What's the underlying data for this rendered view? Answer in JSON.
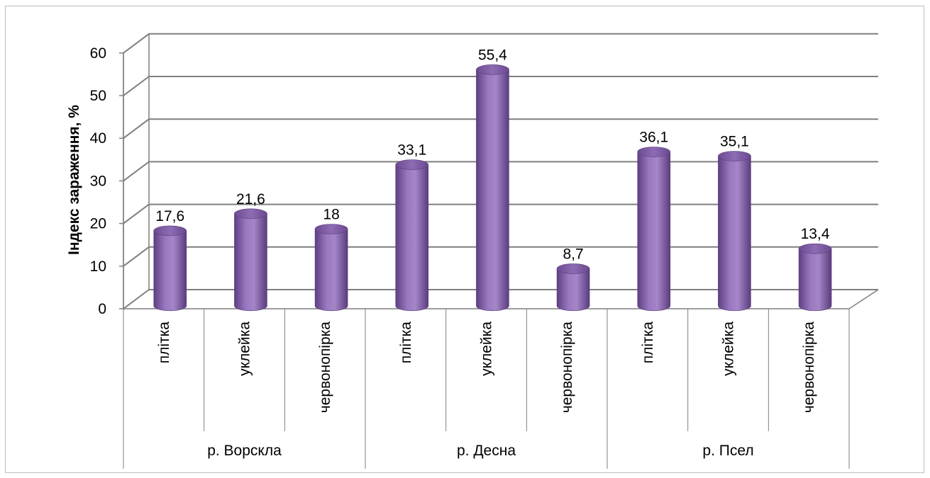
{
  "chart_data": {
    "type": "bar",
    "ylabel": "Індекс зараження, %",
    "ylim": [
      0,
      60
    ],
    "yticks": [
      0,
      10,
      20,
      30,
      40,
      50,
      60
    ],
    "grid": true,
    "bar_color": "#8f6bb3",
    "groups": [
      {
        "label": "р. Ворскла",
        "categories": [
          {
            "label": "плітка",
            "value": 17.6,
            "value_label": "17,6"
          },
          {
            "label": "уклейка",
            "value": 21.6,
            "value_label": "21,6"
          },
          {
            "label": "червонопірка",
            "value": 18,
            "value_label": "18"
          }
        ]
      },
      {
        "label": "р. Десна",
        "categories": [
          {
            "label": "плітка",
            "value": 33.1,
            "value_label": "33,1"
          },
          {
            "label": "уклейка",
            "value": 55.4,
            "value_label": "55,4"
          },
          {
            "label": "червонопірка",
            "value": 8.7,
            "value_label": "8,7"
          }
        ]
      },
      {
        "label": "р. Псел",
        "categories": [
          {
            "label": "плітка",
            "value": 36.1,
            "value_label": "36,1"
          },
          {
            "label": "уклейка",
            "value": 35.1,
            "value_label": "35,1"
          },
          {
            "label": "червонопірка",
            "value": 13.4,
            "value_label": "13,4"
          }
        ]
      }
    ]
  }
}
